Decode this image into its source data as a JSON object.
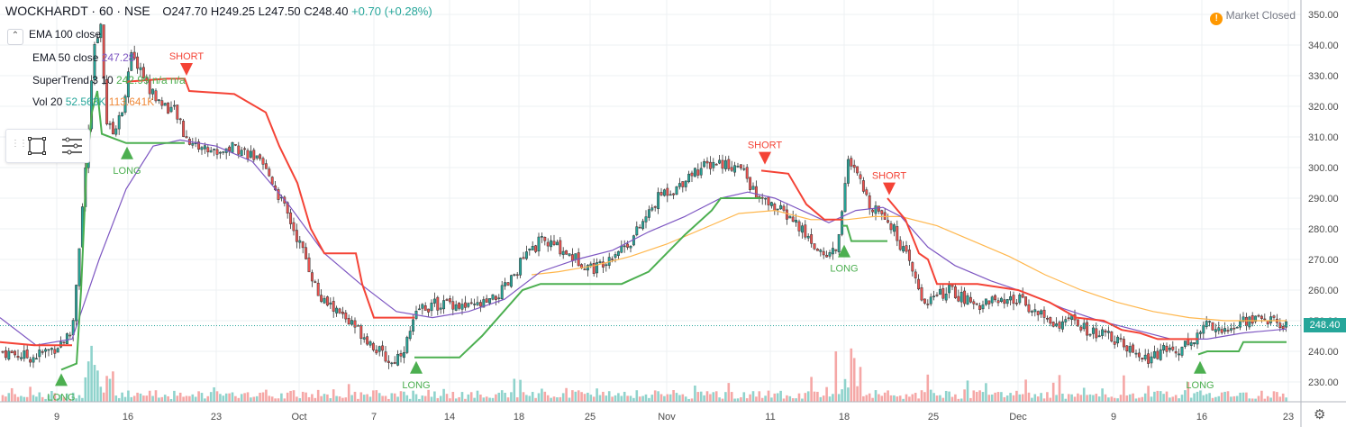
{
  "header": {
    "symbol": "WOCKHARDT · 60 · NSE",
    "open": "O247.70",
    "high": "H249.25",
    "low": "L247.50",
    "close": "C248.40",
    "change": "+0.70 (+0.28%)"
  },
  "legend": {
    "ema100": {
      "label": "EMA 100 close",
      "value": ""
    },
    "ema50": {
      "label": "EMA 50 close",
      "value": "247.28"
    },
    "supertrend": {
      "label": "SuperTrend 3 10",
      "value": "242.99 n/a n/a"
    },
    "vol": {
      "label": "Vol 20",
      "v1": "52.563K",
      "v2": "113.641K"
    }
  },
  "market_status": "Market Closed",
  "last_price": "248.40",
  "colors": {
    "up": "#26a69a",
    "down": "#ef5350",
    "supertrend_up": "#4caf50",
    "supertrend_down": "#f44336",
    "ema50": "#7e57c2",
    "ema100": "#ffb74d",
    "grid": "#eef0f3"
  },
  "icons": [
    "chevron-up-icon",
    "drag-grip-icon",
    "rectangle-tool-icon",
    "settings-list-icon",
    "alert-icon",
    "gear-icon"
  ],
  "chart_data": {
    "type": "candlestick",
    "title": "WOCKHARDT · 60 · NSE",
    "ylim": [
      225,
      352
    ],
    "y_ticks": [
      230,
      240,
      250,
      260,
      270,
      280,
      290,
      300,
      310,
      320,
      330,
      340,
      350
    ],
    "x_ticks": [
      "9",
      "16",
      "23",
      "Oct",
      "7",
      "14",
      "18",
      "25",
      "Nov",
      "11",
      "18",
      "25",
      "Dec",
      "9",
      "16",
      "23"
    ],
    "grid": true,
    "price_path": [
      [
        0,
        240
      ],
      [
        35,
        238
      ],
      [
        60,
        241
      ],
      [
        80,
        246
      ],
      [
        95,
        300
      ],
      [
        105,
        340
      ],
      [
        112,
        345
      ],
      [
        118,
        315
      ],
      [
        125,
        311
      ],
      [
        135,
        318
      ],
      [
        145,
        336
      ],
      [
        155,
        333
      ],
      [
        165,
        326
      ],
      [
        175,
        322
      ],
      [
        185,
        320
      ],
      [
        195,
        318
      ],
      [
        205,
        310
      ],
      [
        220,
        307
      ],
      [
        240,
        305
      ],
      [
        260,
        307
      ],
      [
        280,
        304
      ],
      [
        300,
        297
      ],
      [
        320,
        284
      ],
      [
        340,
        270
      ],
      [
        355,
        257
      ],
      [
        370,
        254
      ],
      [
        390,
        249
      ],
      [
        405,
        245
      ],
      [
        420,
        240
      ],
      [
        435,
        236
      ],
      [
        450,
        242
      ],
      [
        465,
        254
      ],
      [
        480,
        255
      ],
      [
        500,
        256
      ],
      [
        520,
        254
      ],
      [
        545,
        256
      ],
      [
        565,
        262
      ],
      [
        580,
        270
      ],
      [
        600,
        276
      ],
      [
        620,
        274
      ],
      [
        640,
        270
      ],
      [
        660,
        267
      ],
      [
        680,
        272
      ],
      [
        700,
        276
      ],
      [
        720,
        285
      ],
      [
        735,
        292
      ],
      [
        750,
        293
      ],
      [
        765,
        298
      ],
      [
        780,
        300
      ],
      [
        795,
        302
      ],
      [
        810,
        301
      ],
      [
        825,
        299
      ],
      [
        840,
        290
      ],
      [
        860,
        287
      ],
      [
        880,
        283
      ],
      [
        900,
        276
      ],
      [
        915,
        271
      ],
      [
        930,
        274
      ],
      [
        940,
        302
      ],
      [
        950,
        298
      ],
      [
        965,
        288
      ],
      [
        980,
        286
      ],
      [
        995,
        278
      ],
      [
        1010,
        268
      ],
      [
        1025,
        256
      ],
      [
        1040,
        258
      ],
      [
        1055,
        260
      ],
      [
        1070,
        257
      ],
      [
        1085,
        255
      ],
      [
        1100,
        257
      ],
      [
        1115,
        255
      ],
      [
        1130,
        257
      ],
      [
        1150,
        253
      ],
      [
        1170,
        249
      ],
      [
        1190,
        250
      ],
      [
        1210,
        246
      ],
      [
        1230,
        245
      ],
      [
        1250,
        241
      ],
      [
        1270,
        237
      ],
      [
        1290,
        240
      ],
      [
        1310,
        241
      ],
      [
        1330,
        245
      ],
      [
        1340,
        250
      ],
      [
        1360,
        246
      ],
      [
        1380,
        250
      ],
      [
        1400,
        251
      ],
      [
        1420,
        249
      ],
      [
        1428,
        248.4
      ]
    ],
    "ema50_path": [
      [
        0,
        251
      ],
      [
        40,
        242
      ],
      [
        80,
        244
      ],
      [
        110,
        270
      ],
      [
        140,
        293
      ],
      [
        170,
        307
      ],
      [
        200,
        309
      ],
      [
        240,
        307
      ],
      [
        280,
        302
      ],
      [
        320,
        288
      ],
      [
        360,
        272
      ],
      [
        400,
        262
      ],
      [
        440,
        253
      ],
      [
        480,
        251
      ],
      [
        520,
        253
      ],
      [
        560,
        257
      ],
      [
        600,
        266
      ],
      [
        640,
        270
      ],
      [
        680,
        273
      ],
      [
        720,
        279
      ],
      [
        760,
        284
      ],
      [
        800,
        290
      ],
      [
        830,
        292
      ],
      [
        860,
        290
      ],
      [
        890,
        286
      ],
      [
        920,
        282
      ],
      [
        950,
        286
      ],
      [
        980,
        287
      ],
      [
        1000,
        284
      ],
      [
        1030,
        274
      ],
      [
        1060,
        268
      ],
      [
        1100,
        263
      ],
      [
        1140,
        259
      ],
      [
        1180,
        254
      ],
      [
        1220,
        250
      ],
      [
        1260,
        247
      ],
      [
        1300,
        244
      ],
      [
        1340,
        244
      ],
      [
        1380,
        246
      ],
      [
        1428,
        247.3
      ]
    ],
    "ema100_path": [
      [
        590,
        265
      ],
      [
        620,
        266
      ],
      [
        660,
        268
      ],
      [
        700,
        271
      ],
      [
        740,
        275
      ],
      [
        780,
        280
      ],
      [
        820,
        285
      ],
      [
        860,
        286
      ],
      [
        900,
        283
      ],
      [
        940,
        283
      ],
      [
        970,
        284
      ],
      [
        1000,
        284
      ],
      [
        1040,
        281
      ],
      [
        1080,
        276
      ],
      [
        1120,
        271
      ],
      [
        1160,
        265
      ],
      [
        1200,
        260
      ],
      [
        1240,
        256
      ],
      [
        1280,
        253
      ],
      [
        1320,
        251
      ],
      [
        1360,
        250
      ],
      [
        1400,
        250
      ],
      [
        1428,
        250
      ]
    ],
    "supertrend_segments": [
      {
        "dir": "down",
        "points": [
          [
            0,
            243
          ],
          [
            38,
            242
          ],
          [
            80,
            242
          ]
        ]
      },
      {
        "dir": "up",
        "points": [
          [
            68,
            234
          ],
          [
            85,
            236
          ],
          [
            90,
            260
          ],
          [
            96,
            300
          ],
          [
            102,
            318
          ],
          [
            108,
            325
          ],
          [
            113,
            311
          ],
          [
            140,
            308
          ],
          [
            205,
            308
          ]
        ]
      },
      {
        "dir": "down",
        "points": [
          [
            140,
            328
          ],
          [
            185,
            329
          ],
          [
            205,
            329
          ],
          [
            210,
            325
          ],
          [
            260,
            324
          ],
          [
            295,
            318
          ],
          [
            310,
            307
          ],
          [
            330,
            295
          ],
          [
            345,
            280
          ],
          [
            360,
            272
          ],
          [
            395,
            272
          ],
          [
            402,
            262
          ],
          [
            415,
            251
          ],
          [
            460,
            251
          ]
        ]
      },
      {
        "dir": "up",
        "points": [
          [
            460,
            238
          ],
          [
            510,
            238
          ],
          [
            535,
            245
          ],
          [
            580,
            260
          ],
          [
            600,
            262
          ],
          [
            650,
            262
          ],
          [
            690,
            262
          ],
          [
            720,
            266
          ],
          [
            760,
            278
          ],
          [
            790,
            286
          ],
          [
            800,
            290
          ],
          [
            845,
            290
          ]
        ]
      },
      {
        "dir": "down",
        "points": [
          [
            845,
            299
          ],
          [
            875,
            298
          ],
          [
            895,
            288
          ],
          [
            915,
            283
          ],
          [
            935,
            283
          ]
        ]
      },
      {
        "dir": "up",
        "points": [
          [
            935,
            281
          ],
          [
            940,
            281
          ],
          [
            945,
            276
          ],
          [
            985,
            276
          ]
        ]
      },
      {
        "dir": "down",
        "points": [
          [
            985,
            290
          ],
          [
            1005,
            283
          ],
          [
            1020,
            272
          ],
          [
            1030,
            270
          ],
          [
            1040,
            262
          ],
          [
            1085,
            262
          ],
          [
            1130,
            260
          ],
          [
            1165,
            256
          ],
          [
            1195,
            251
          ],
          [
            1225,
            250
          ],
          [
            1245,
            247
          ],
          [
            1265,
            246
          ],
          [
            1285,
            244
          ],
          [
            1330,
            244
          ]
        ]
      },
      {
        "dir": "up",
        "points": [
          [
            1330,
            239
          ],
          [
            1340,
            240
          ],
          [
            1375,
            240
          ],
          [
            1380,
            243
          ],
          [
            1428,
            243
          ]
        ]
      }
    ],
    "signals": [
      {
        "label": "LONG",
        "x": 68,
        "price": 234
      },
      {
        "label": "LONG",
        "x": 141,
        "price": 308
      },
      {
        "label": "SHORT",
        "x": 207,
        "price": 330
      },
      {
        "label": "LONG",
        "x": 462,
        "price": 238
      },
      {
        "label": "SHORT",
        "x": 849,
        "price": 301
      },
      {
        "label": "LONG",
        "x": 937,
        "price": 276
      },
      {
        "label": "SHORT",
        "x": 987,
        "price": 291
      },
      {
        "label": "LONG",
        "x": 1332,
        "price": 238
      }
    ],
    "last_price": 248.4
  }
}
